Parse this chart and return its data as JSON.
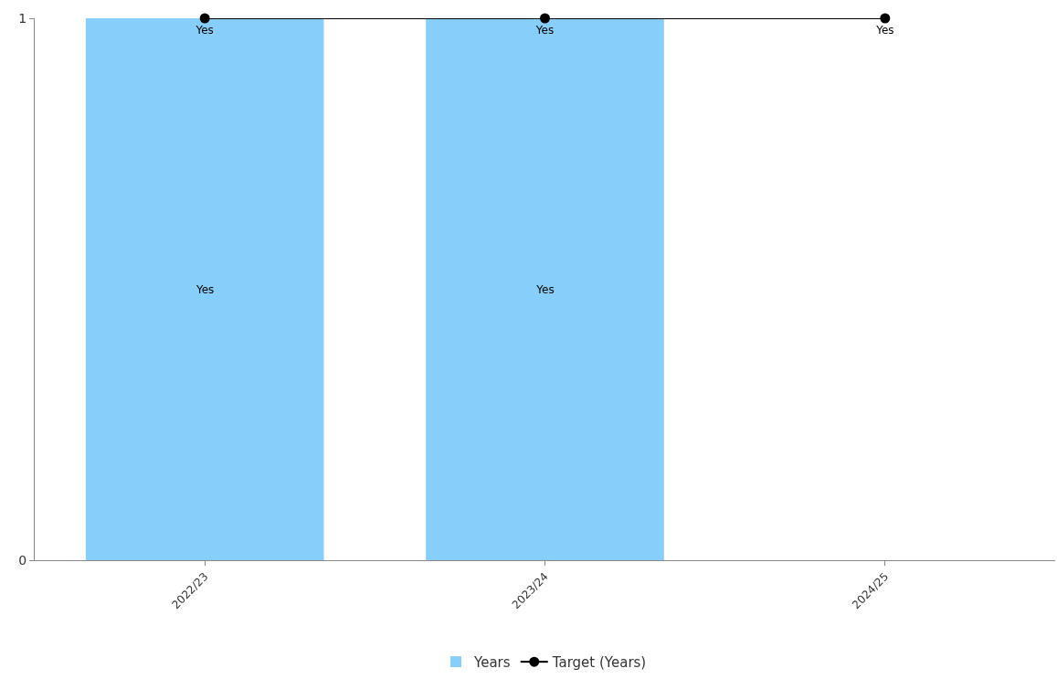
{
  "chart_data": {
    "type": "bar",
    "categories": [
      "2022/23",
      "2023/24",
      "2024/25"
    ],
    "series": [
      {
        "name": "Years",
        "color": "#87cefa",
        "values": [
          1,
          1,
          null
        ],
        "value_labels": [
          "Yes",
          "Yes",
          null
        ]
      },
      {
        "name": "Target (Years)",
        "type": "line",
        "color": "#000000",
        "values": [
          1,
          1,
          1
        ],
        "value_labels": [
          "Yes",
          "Yes",
          "Yes"
        ],
        "marker": "circle",
        "line_style": "solid"
      }
    ],
    "ylim": [
      0,
      1
    ],
    "yticks": [
      0,
      1
    ],
    "legend": "bottom"
  }
}
